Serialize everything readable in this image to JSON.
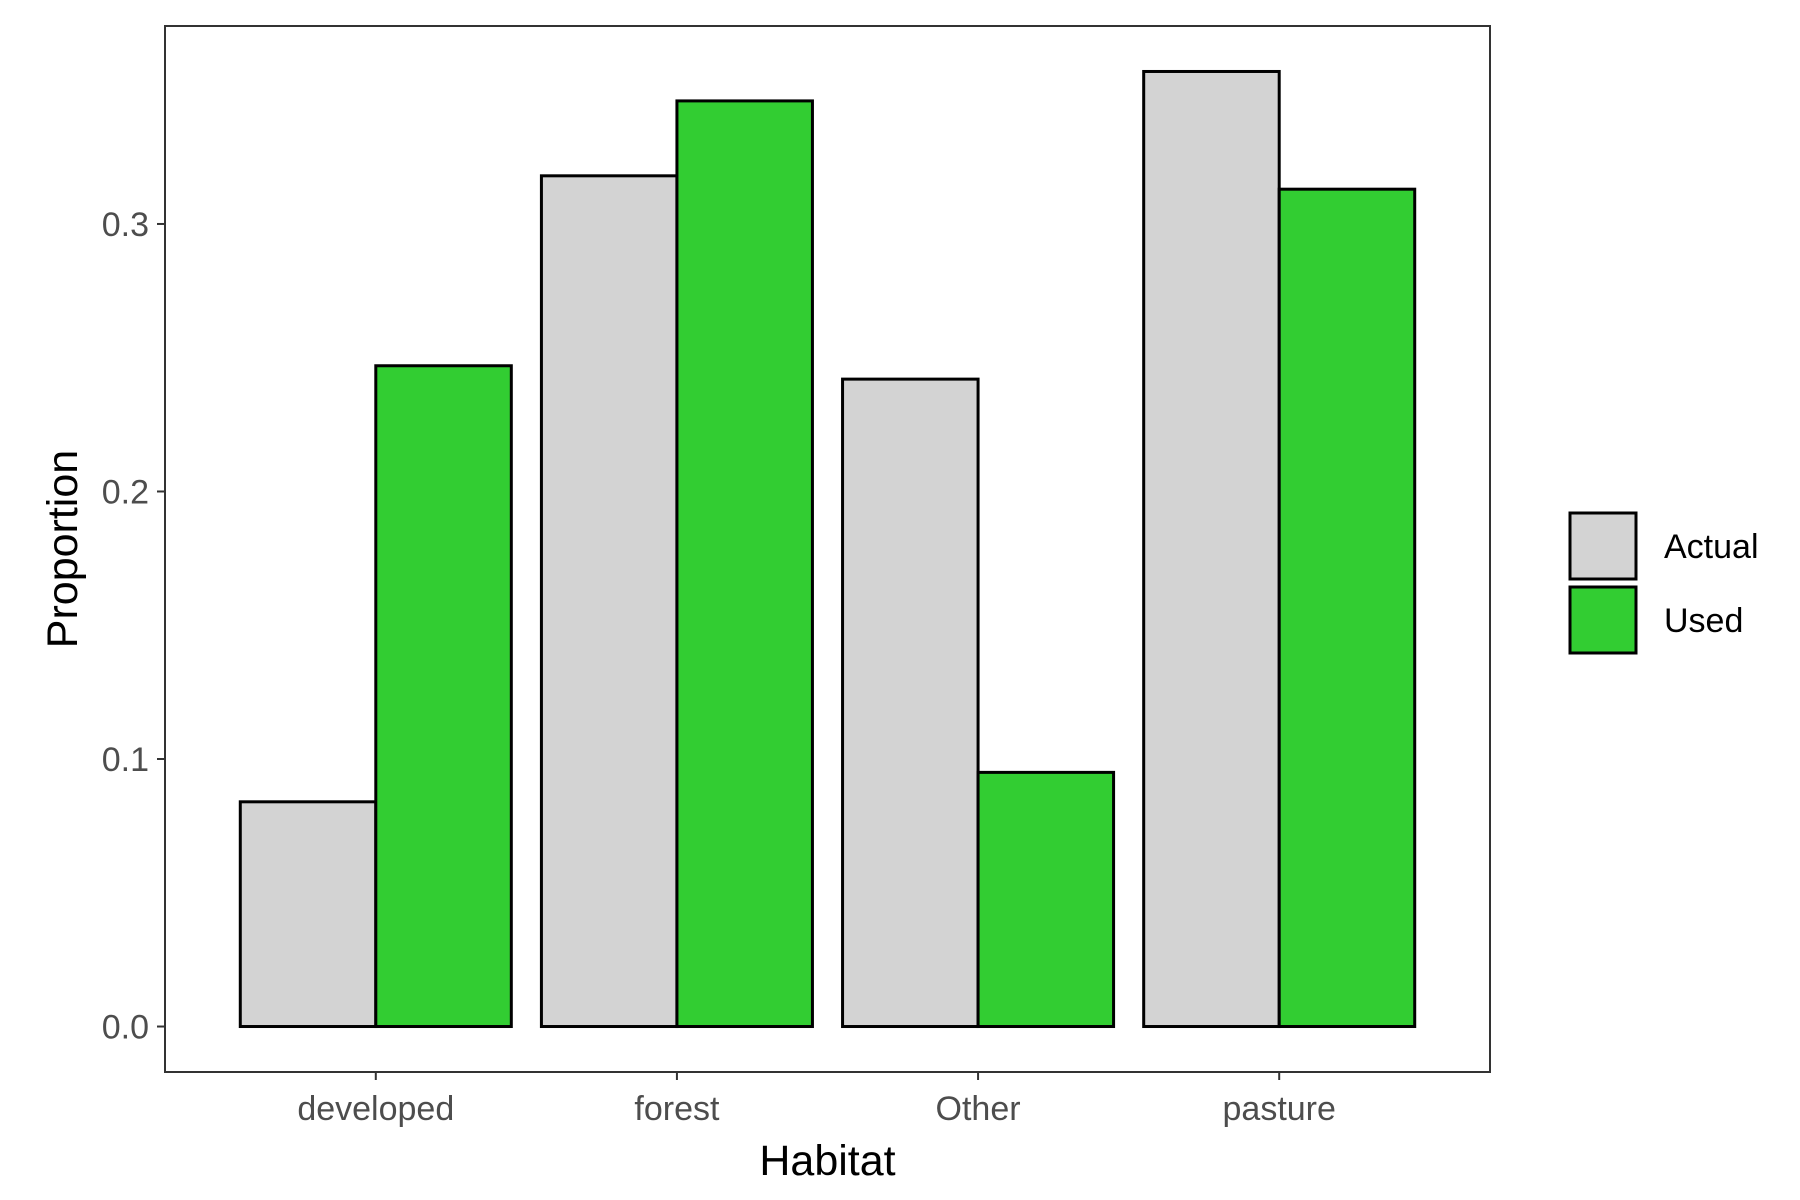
{
  "chart_data": {
    "type": "bar",
    "categories": [
      "developed",
      "forest",
      "Other",
      "pasture"
    ],
    "series": [
      {
        "name": "Actual",
        "values": [
          0.084,
          0.318,
          0.242,
          0.357
        ],
        "color": "#d3d3d3"
      },
      {
        "name": "Used",
        "values": [
          0.247,
          0.346,
          0.095,
          0.313
        ],
        "color": "#32cd32"
      }
    ],
    "xlabel": "Habitat",
    "ylabel": "Proportion",
    "yticks": [
      0.0,
      0.1,
      0.2,
      0.3
    ],
    "ytick_labels": [
      "0.0",
      "0.1",
      "0.2",
      "0.3"
    ],
    "ylim": [
      -0.017,
      0.374
    ],
    "grid": false,
    "legend_position": "right",
    "bar_outline_color": "#000000"
  }
}
